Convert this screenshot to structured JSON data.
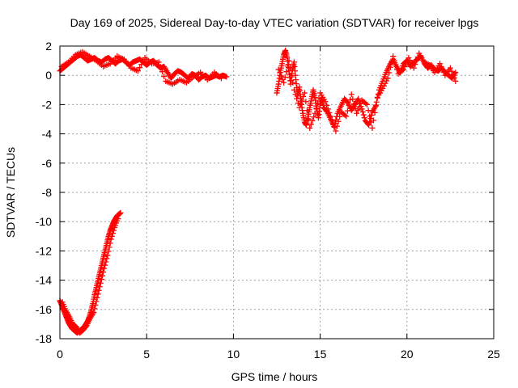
{
  "chart_data": {
    "type": "scatter",
    "title": "Day 169 of 2025, Sidereal Day-to-day VTEC variation (SDTVAR) for receiver lpgs",
    "xlabel": "GPS time / hours",
    "ylabel": "SDTVAR / TECUs",
    "xlim": [
      0,
      25
    ],
    "ylim": [
      -18,
      2
    ],
    "xticks": [
      0,
      5,
      10,
      15,
      20,
      25
    ],
    "yticks": [
      -18,
      -16,
      -14,
      -12,
      -10,
      -8,
      -6,
      -4,
      -2,
      0,
      2
    ],
    "grid": true,
    "marker": "plus",
    "color": "#ff0000",
    "series": [
      {
        "name": "lpgs-arc-1",
        "x": [
          0.0,
          0.2,
          0.4,
          0.6,
          0.8,
          1.0,
          1.2,
          1.4,
          1.6,
          1.8,
          2.0,
          2.2,
          2.4,
          2.6,
          2.8,
          3.0,
          3.2,
          3.4,
          3.6,
          3.8,
          4.0,
          4.2,
          4.4,
          4.6,
          4.8,
          5.0,
          5.2,
          5.4,
          5.6,
          5.8,
          6.0,
          6.2,
          6.4,
          6.6,
          6.8,
          7.0,
          7.2,
          7.4,
          7.6,
          7.8,
          8.0,
          8.2,
          8.4,
          8.6,
          8.8,
          9.0,
          9.2,
          9.4,
          9.6
        ],
        "y": [
          0.3,
          0.5,
          0.7,
          0.9,
          1.1,
          1.3,
          1.4,
          1.2,
          1.0,
          1.1,
          1.2,
          1.0,
          0.9,
          1.1,
          1.2,
          1.0,
          0.8,
          1.0,
          1.1,
          0.9,
          0.7,
          0.9,
          1.0,
          1.1,
          0.9,
          0.7,
          0.9,
          1.0,
          0.7,
          0.5,
          0.6,
          0.2,
          -0.2,
          0.1,
          0.3,
          0.2,
          0.0,
          -0.2,
          0.1,
          0.0,
          -0.3,
          -0.1,
          0.0,
          -0.2,
          -0.1,
          0.0,
          -0.1,
          0.0,
          -0.1
        ]
      },
      {
        "name": "lpgs-arc-1-scatter",
        "x": [
          0.1,
          0.5,
          0.9,
          1.3,
          1.7,
          2.1,
          2.5,
          2.9,
          3.3,
          3.7,
          4.1,
          4.5,
          4.9,
          5.3,
          5.7,
          6.1,
          6.5,
          6.9,
          7.3,
          7.7,
          8.1,
          8.5,
          8.9,
          9.3
        ],
        "y": [
          0.6,
          0.9,
          1.4,
          1.6,
          1.3,
          1.0,
          0.6,
          0.8,
          1.3,
          1.1,
          0.5,
          0.3,
          1.2,
          0.8,
          0.9,
          -0.4,
          -0.6,
          -0.3,
          -0.5,
          -0.1,
          0.2,
          -0.3,
          0.2,
          -0.2
        ]
      },
      {
        "name": "lpgs-arc-2",
        "x": [
          12.5,
          12.6,
          12.7,
          12.8,
          12.9,
          13.0,
          13.1,
          13.2,
          13.3,
          13.4,
          13.5,
          13.6,
          13.7,
          13.8,
          13.9,
          14.0,
          14.1,
          14.2,
          14.3,
          14.4,
          14.5,
          14.6,
          14.7,
          14.8,
          14.9,
          15.0,
          15.1,
          15.2,
          15.4,
          15.6,
          15.8,
          16.0,
          16.2,
          16.4,
          16.6,
          16.8,
          17.0,
          17.2,
          17.4,
          17.6,
          17.8,
          18.0,
          18.2,
          18.4,
          18.6,
          18.8,
          19.0,
          19.2,
          19.4,
          19.6,
          19.8,
          20.0,
          20.2,
          20.4,
          20.6,
          20.8,
          21.0,
          21.2,
          21.4,
          21.6,
          21.8,
          22.0,
          22.2,
          22.4,
          22.6,
          22.8
        ],
        "y": [
          -1.2,
          -0.6,
          0.2,
          0.8,
          1.4,
          1.7,
          1.2,
          0.3,
          -0.6,
          0.4,
          0.9,
          -0.3,
          -1.4,
          -0.8,
          -1.8,
          -2.6,
          -3.2,
          -3.4,
          -2.8,
          -2.2,
          -1.6,
          -1.0,
          -1.5,
          -2.3,
          -2.9,
          -2.0,
          -1.6,
          -2.2,
          -2.5,
          -3.0,
          -3.5,
          -2.6,
          -2.1,
          -1.6,
          -1.9,
          -2.4,
          -2.0,
          -1.6,
          -2.3,
          -3.1,
          -3.4,
          -2.5,
          -2.1,
          -1.0,
          -0.4,
          0.2,
          0.7,
          1.1,
          0.6,
          0.2,
          0.8,
          1.0,
          0.6,
          0.9,
          1.1,
          1.3,
          0.8,
          0.5,
          0.7,
          0.4,
          0.3,
          0.5,
          0.2,
          0.0,
          -0.2,
          0.2
        ]
      },
      {
        "name": "lpgs-arc-2-scatter",
        "x": [
          12.6,
          12.9,
          13.2,
          13.5,
          13.8,
          14.1,
          14.4,
          14.7,
          15.0,
          15.3,
          15.6,
          15.9,
          16.2,
          16.5,
          16.8,
          17.1,
          17.4,
          17.7,
          18.0,
          18.3,
          18.6,
          18.9,
          19.2,
          19.5,
          19.8,
          20.1,
          20.4,
          20.7,
          21.0,
          21.3,
          21.6,
          21.9,
          22.2,
          22.5,
          22.8
        ],
        "y": [
          0.4,
          -0.5,
          1.0,
          -1.0,
          -2.2,
          -1.2,
          -3.6,
          -2.6,
          -1.2,
          -1.8,
          -2.8,
          -3.8,
          -2.5,
          -2.8,
          -1.3,
          -2.6,
          -1.7,
          -2.0,
          -3.6,
          -1.5,
          -0.9,
          -0.2,
          1.3,
          0.1,
          0.4,
          1.2,
          0.5,
          1.5,
          0.9,
          0.7,
          0.2,
          0.8,
          0.0,
          0.5,
          -0.4
        ]
      },
      {
        "name": "lpgs-arc-3",
        "x": [
          0.0,
          0.1,
          0.2,
          0.3,
          0.4,
          0.5,
          0.6,
          0.7,
          0.8,
          0.9,
          1.0,
          1.1,
          1.2,
          1.3,
          1.4,
          1.5,
          1.6,
          1.7,
          1.8,
          1.9,
          2.0,
          2.1,
          2.2,
          2.3,
          2.4,
          2.5,
          2.6,
          2.7,
          2.8,
          2.9,
          3.0,
          3.1,
          3.2,
          3.3,
          3.4,
          3.5
        ],
        "y": [
          -15.4,
          -15.7,
          -16.0,
          -16.3,
          -16.6,
          -16.9,
          -17.1,
          -17.3,
          -17.4,
          -17.5,
          -17.6,
          -17.5,
          -17.4,
          -17.3,
          -17.2,
          -17.0,
          -16.8,
          -16.5,
          -16.1,
          -15.6,
          -15.0,
          -14.5,
          -14.0,
          -13.5,
          -13.0,
          -12.5,
          -12.0,
          -11.5,
          -11.0,
          -10.6,
          -10.3,
          -10.0,
          -9.8,
          -9.6,
          -9.5,
          -9.4
        ]
      },
      {
        "name": "lpgs-arc-3-scatter",
        "x": [
          0.15,
          0.35,
          0.55,
          0.75,
          0.95,
          1.15,
          1.35,
          1.55,
          1.75,
          1.95,
          2.15,
          2.35,
          2.55,
          2.75,
          2.95,
          3.15,
          3.35
        ],
        "y": [
          -15.5,
          -16.1,
          -16.5,
          -17.0,
          -17.2,
          -17.6,
          -17.4,
          -17.1,
          -16.6,
          -16.2,
          -15.2,
          -14.2,
          -13.2,
          -12.3,
          -11.2,
          -10.4,
          -9.8
        ]
      }
    ]
  }
}
